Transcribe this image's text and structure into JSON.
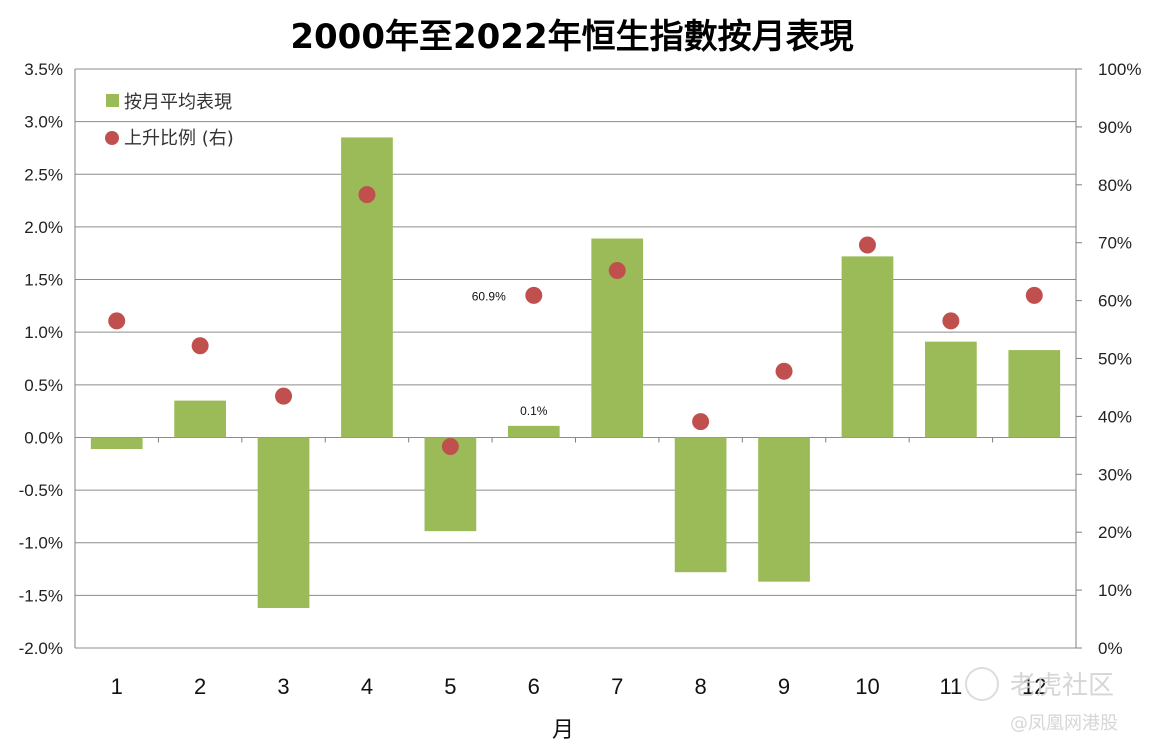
{
  "chart_data": {
    "type": "bar",
    "title": "2000年至2022年恒生指數按月表現",
    "xlabel": "月",
    "ylabel": "",
    "y2label": "",
    "categories": [
      "1",
      "2",
      "3",
      "4",
      "5",
      "6",
      "7",
      "8",
      "9",
      "10",
      "11",
      "12"
    ],
    "series": [
      {
        "name": "按月平均表現",
        "kind": "bar",
        "axis": "left",
        "color": "#9bbb59",
        "values": [
          -0.11,
          0.35,
          -1.62,
          2.85,
          -0.89,
          0.11,
          1.89,
          -1.28,
          -1.37,
          1.72,
          0.91,
          0.83
        ]
      },
      {
        "name": "上升比例 (右)",
        "kind": "scatter",
        "axis": "right",
        "color": "#c0504d",
        "values": [
          56.5,
          52.2,
          43.5,
          78.3,
          34.8,
          60.9,
          65.2,
          39.1,
          47.8,
          69.6,
          56.5,
          60.9
        ]
      }
    ],
    "data_labels": [
      {
        "series": 0,
        "index": 5,
        "text": "0.1%"
      },
      {
        "series": 1,
        "index": 5,
        "text": "60.9%"
      }
    ],
    "ylim": [
      -2.0,
      3.5
    ],
    "y2lim": [
      0,
      100
    ],
    "yticks": [
      "-2.0%",
      "-1.5%",
      "-1.0%",
      "-0.5%",
      "0.0%",
      "0.5%",
      "1.0%",
      "1.5%",
      "2.0%",
      "2.5%",
      "3.0%",
      "3.5%"
    ],
    "y2ticks": [
      "0%",
      "10%",
      "20%",
      "30%",
      "40%",
      "50%",
      "60%",
      "70%",
      "80%",
      "90%",
      "100%"
    ],
    "grid": true,
    "legend_position": "top-left"
  },
  "watermark": {
    "text1": "老虎社区",
    "text2": "@凤凰网港股"
  }
}
